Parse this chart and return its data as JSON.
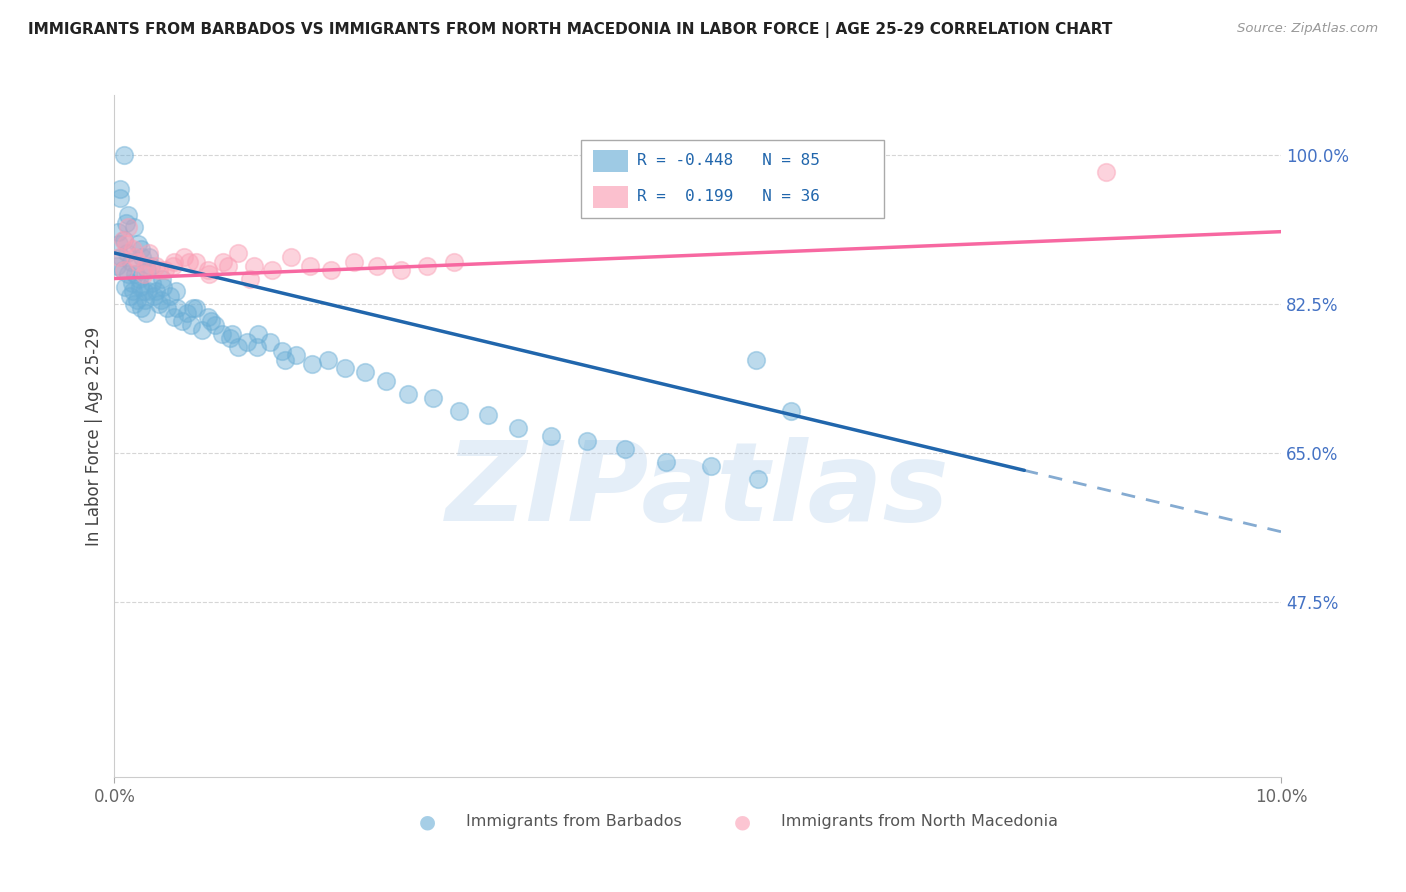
{
  "title": "IMMIGRANTS FROM BARBADOS VS IMMIGRANTS FROM NORTH MACEDONIA IN LABOR FORCE | AGE 25-29 CORRELATION CHART",
  "source": "Source: ZipAtlas.com",
  "ylabel": "In Labor Force | Age 25-29",
  "xlim": [
    0.0,
    10.0
  ],
  "ylim": [
    27.0,
    107.0
  ],
  "yticks": [
    47.5,
    65.0,
    82.5,
    100.0
  ],
  "xticks": [
    0.0,
    10.0
  ],
  "blue_R": -0.448,
  "blue_N": 85,
  "pink_R": 0.199,
  "pink_N": 36,
  "blue_color": "#6baed6",
  "pink_color": "#fa9fb5",
  "blue_line_color": "#2166ac",
  "pink_line_color": "#f768a1",
  "watermark": "ZIPatlas",
  "watermark_color": "#a8c8e8",
  "legend_label_blue": "Immigrants from Barbados",
  "legend_label_pink": "Immigrants from North Macedonia",
  "blue_scatter_x": [
    0.02,
    0.03,
    0.04,
    0.05,
    0.06,
    0.07,
    0.08,
    0.09,
    0.1,
    0.11,
    0.12,
    0.13,
    0.14,
    0.15,
    0.16,
    0.17,
    0.18,
    0.19,
    0.2,
    0.21,
    0.22,
    0.23,
    0.24,
    0.25,
    0.26,
    0.27,
    0.28,
    0.29,
    0.3,
    0.32,
    0.34,
    0.36,
    0.38,
    0.4,
    0.42,
    0.45,
    0.48,
    0.51,
    0.54,
    0.58,
    0.62,
    0.66,
    0.7,
    0.75,
    0.8,
    0.86,
    0.92,
    0.99,
    1.06,
    1.14,
    1.23,
    1.33,
    1.44,
    1.56,
    1.69,
    1.83,
    1.98,
    2.15,
    2.33,
    2.52,
    2.73,
    2.95,
    3.2,
    3.46,
    3.74,
    4.05,
    4.38,
    4.73,
    5.11,
    5.52,
    0.05,
    0.08,
    0.12,
    0.17,
    0.23,
    0.31,
    0.41,
    0.53,
    0.67,
    0.83,
    1.01,
    1.22,
    1.46,
    5.5,
    5.8
  ],
  "blue_scatter_y": [
    87.0,
    91.0,
    89.5,
    95.0,
    88.0,
    86.5,
    90.0,
    84.5,
    92.0,
    88.5,
    86.0,
    83.5,
    87.5,
    85.0,
    84.0,
    82.5,
    86.0,
    83.0,
    89.5,
    85.5,
    84.5,
    82.0,
    88.0,
    84.0,
    83.0,
    81.5,
    86.5,
    84.0,
    88.0,
    85.0,
    83.5,
    84.0,
    82.5,
    83.0,
    84.5,
    82.0,
    83.5,
    81.0,
    82.0,
    80.5,
    81.5,
    80.0,
    82.0,
    79.5,
    81.0,
    80.0,
    79.0,
    78.5,
    77.5,
    78.0,
    79.0,
    78.0,
    77.0,
    76.5,
    75.5,
    76.0,
    75.0,
    74.5,
    73.5,
    72.0,
    71.5,
    70.0,
    69.5,
    68.0,
    67.0,
    66.5,
    65.5,
    64.0,
    63.5,
    62.0,
    96.0,
    100.0,
    93.0,
    91.5,
    89.0,
    87.0,
    85.5,
    84.0,
    82.0,
    80.5,
    79.0,
    77.5,
    76.0,
    76.0,
    70.0
  ],
  "pink_scatter_x": [
    0.04,
    0.08,
    0.12,
    0.16,
    0.2,
    0.25,
    0.3,
    0.36,
    0.43,
    0.51,
    0.6,
    0.7,
    0.81,
    0.93,
    1.06,
    1.2,
    1.35,
    1.51,
    1.68,
    1.86,
    2.05,
    2.25,
    2.46,
    2.68,
    2.91,
    0.1,
    0.18,
    0.27,
    0.38,
    0.5,
    0.64,
    0.8,
    0.97,
    1.16,
    8.5,
    0.07
  ],
  "pink_scatter_y": [
    88.0,
    86.5,
    91.5,
    89.0,
    87.5,
    86.0,
    88.5,
    87.0,
    86.5,
    87.5,
    88.0,
    87.5,
    86.0,
    87.5,
    88.5,
    87.0,
    86.5,
    88.0,
    87.0,
    86.5,
    87.5,
    87.0,
    86.5,
    87.0,
    87.5,
    89.5,
    88.0,
    87.0,
    86.5,
    87.0,
    87.5,
    86.5,
    87.0,
    85.5,
    98.0,
    90.0
  ],
  "blue_line_x0": 0.0,
  "blue_line_y0": 88.5,
  "blue_line_x1": 7.8,
  "blue_line_y1": 63.0,
  "blue_dash_x0": 7.8,
  "blue_dash_y0": 63.0,
  "blue_dash_x1": 10.0,
  "blue_dash_y1": 55.8,
  "pink_line_x0": 0.0,
  "pink_line_y0": 85.5,
  "pink_line_x1": 10.0,
  "pink_line_y1": 91.0
}
